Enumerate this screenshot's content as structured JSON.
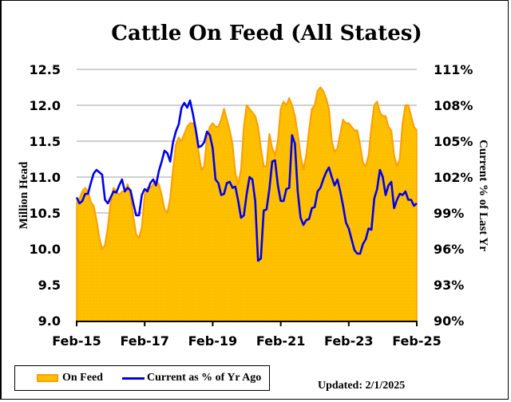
{
  "chart_data": {
    "type": "area+line",
    "title": "Cattle On Feed (All States)",
    "xlabel": "",
    "ylabel": "Million Head",
    "y2label": "Current % of Last Yr",
    "x_tick_labels": [
      "Feb-15",
      "Feb-17",
      "Feb-19",
      "Feb-21",
      "Feb-23",
      "Feb-25"
    ],
    "y_ticks": [
      9.0,
      9.5,
      10.0,
      10.5,
      11.0,
      11.5,
      12.0,
      12.5
    ],
    "y_tick_labels": [
      "9.0",
      "9.5",
      "10.0",
      "10.5",
      "11.0",
      "11.5",
      "12.0",
      "12.5"
    ],
    "ylim": [
      9.0,
      12.5
    ],
    "y2_ticks": [
      90,
      93,
      96,
      99,
      102,
      105,
      108,
      111
    ],
    "y2_tick_labels": [
      "90%",
      "93%",
      "96%",
      "99%",
      "102%",
      "105%",
      "108%",
      "111%"
    ],
    "y2lim": [
      90,
      111
    ],
    "grid": "horizontal",
    "legend_position": "bottom-left",
    "x_start": "Feb-15",
    "x_end": "Feb-25",
    "x_unit": "month",
    "series": [
      {
        "name": "On Feed",
        "type": "area",
        "axis": "left",
        "color": "#ffc000",
        "edge_color": "#ffa000",
        "values": [
          10.65,
          10.7,
          10.8,
          10.85,
          10.8,
          10.65,
          10.6,
          10.4,
          10.15,
          10.0,
          10.05,
          10.3,
          10.65,
          10.85,
          10.8,
          10.75,
          10.8,
          10.8,
          10.9,
          10.75,
          10.45,
          10.2,
          10.15,
          10.3,
          10.75,
          10.85,
          10.85,
          10.9,
          10.95,
          10.9,
          10.75,
          10.55,
          10.5,
          10.7,
          11.1,
          11.45,
          11.55,
          11.5,
          11.6,
          11.7,
          11.75,
          11.75,
          11.65,
          11.35,
          11.1,
          11.15,
          11.55,
          11.7,
          11.75,
          11.7,
          11.7,
          11.8,
          11.95,
          11.8,
          11.65,
          11.45,
          11.05,
          10.9,
          11.1,
          11.7,
          12.0,
          11.95,
          11.9,
          11.85,
          11.7,
          11.4,
          11.15,
          11.15,
          11.6,
          11.4,
          11.3,
          11.5,
          11.95,
          12.05,
          12.0,
          12.1,
          12.0,
          11.85,
          11.6,
          11.3,
          11.1,
          11.3,
          11.65,
          11.95,
          12.0,
          12.2,
          12.25,
          12.2,
          12.1,
          11.95,
          11.5,
          11.35,
          11.4,
          11.6,
          11.8,
          11.75,
          11.75,
          11.7,
          11.65,
          11.65,
          11.45,
          11.2,
          11.15,
          11.3,
          11.7,
          12.0,
          12.05,
          11.9,
          11.85,
          11.85,
          11.7,
          11.65,
          11.3,
          11.15,
          11.25,
          11.75,
          12.0,
          12.0,
          11.85,
          11.7,
          11.65
        ],
        "value_precision_note": "monthly estimates read from gridlines"
      },
      {
        "name": "Current as % of Yr Ago",
        "type": "line",
        "axis": "right",
        "color": "#0000ee",
        "values": [
          100.3,
          99.8,
          100.0,
          100.6,
          100.6,
          101.5,
          102.3,
          102.6,
          102.4,
          102.2,
          100.1,
          99.8,
          100.3,
          100.8,
          100.7,
          101.3,
          101.8,
          100.8,
          101.1,
          100.9,
          99.8,
          98.8,
          98.8,
          100.5,
          101.0,
          100.8,
          101.5,
          101.8,
          101.3,
          102.5,
          103.3,
          104.2,
          104.0,
          103.3,
          104.9,
          105.8,
          106.4,
          107.8,
          108.2,
          107.8,
          108.4,
          107.3,
          106.0,
          104.5,
          104.6,
          104.9,
          105.8,
          105.5,
          104.4,
          101.8,
          101.5,
          100.5,
          100.6,
          101.5,
          101.6,
          101.1,
          101.2,
          100.0,
          98.6,
          98.8,
          100.6,
          102.0,
          101.8,
          100.0,
          95.0,
          95.2,
          99.2,
          99.3,
          101.0,
          103.3,
          103.4,
          101.3,
          100.0,
          100.0,
          101.0,
          101.1,
          105.5,
          104.8,
          100.8,
          98.6,
          98.0,
          98.4,
          98.5,
          99.4,
          99.5,
          100.8,
          101.1,
          101.8,
          102.4,
          102.8,
          102.0,
          101.3,
          101.8,
          100.8,
          99.6,
          98.2,
          97.7,
          96.8,
          95.9,
          95.6,
          95.6,
          96.4,
          96.8,
          97.7,
          97.6,
          100.2,
          101.0,
          102.6,
          102.0,
          100.5,
          101.3,
          101.6,
          99.4,
          100.1,
          100.6,
          100.5,
          100.8,
          100.1,
          100.1,
          99.6,
          99.8
        ]
      }
    ],
    "legend": [
      {
        "label": "On Feed",
        "swatch": "area"
      },
      {
        "label": "Current as % of Yr Ago",
        "swatch": "line"
      }
    ],
    "annotations": [
      "Updated: 2/1/2025"
    ]
  },
  "legend": {
    "on_feed_label": "On Feed",
    "current_label": "Current as % of Yr Ago"
  },
  "updated_label": "Updated: 2/1/2025"
}
